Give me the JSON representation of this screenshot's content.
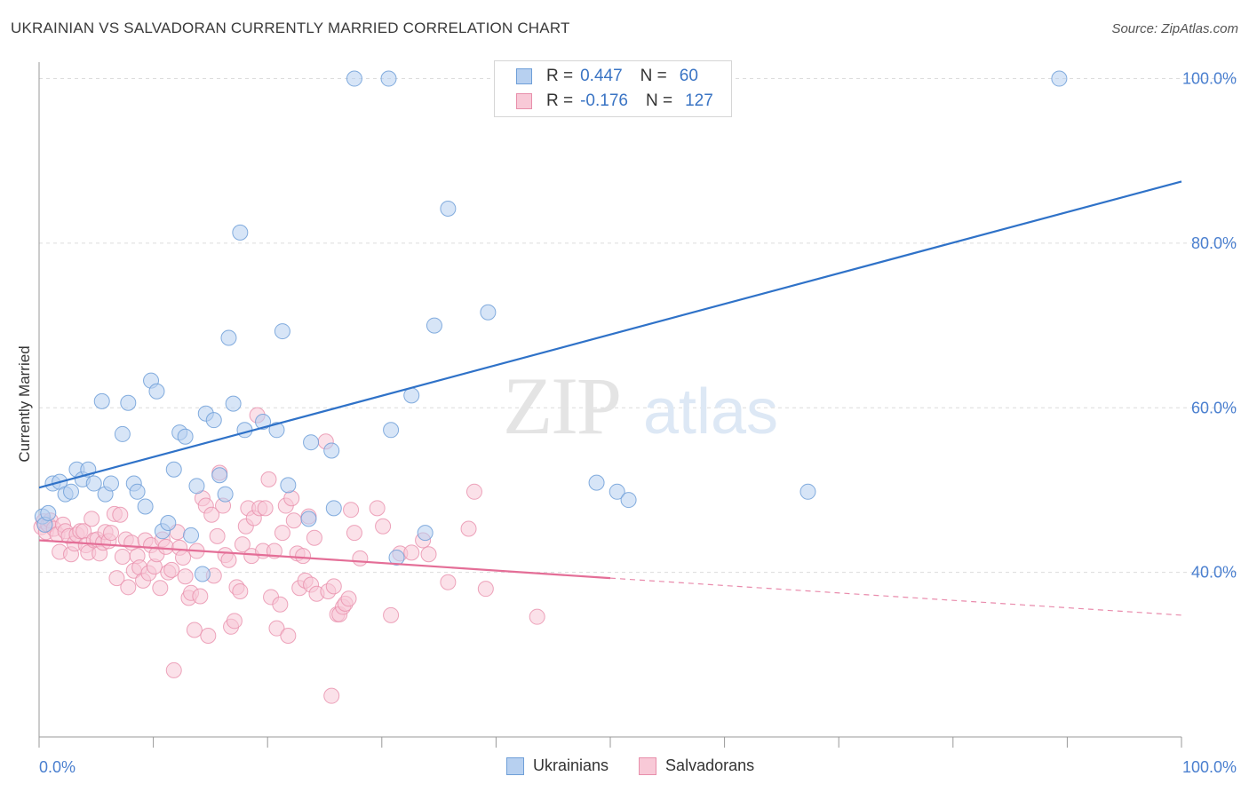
{
  "title": "UKRAINIAN VS SALVADORAN CURRENTLY MARRIED CORRELATION CHART",
  "source": "Source: ZipAtlas.com",
  "watermark": {
    "zip": "ZIP",
    "atlas": "atlas"
  },
  "legend": {
    "r_label": "R =",
    "n_label": "N =",
    "rows": [
      {
        "r": "0.447",
        "n": "60",
        "color": "#a9c7ee",
        "border": "#6f9fd8"
      },
      {
        "r": "-0.176",
        "n": "127",
        "color": "#f6bfd0",
        "border": "#e88fab"
      }
    ]
  },
  "bottom_legend": [
    {
      "label": "Ukrainians",
      "color": "#b7d0f0",
      "border": "#6f9fd8"
    },
    {
      "label": "Salvadorans",
      "color": "#f8c9d7",
      "border": "#e88fab"
    }
  ],
  "chart_data": {
    "type": "scatter",
    "title": "UKRAINIAN VS SALVADORAN CURRENTLY MARRIED CORRELATION CHART",
    "xlabel": "",
    "ylabel": "Currently Married",
    "xlim": [
      0,
      100
    ],
    "ylim": [
      20,
      102
    ],
    "x_tick_labels": [
      "0.0%",
      "100.0%"
    ],
    "y_tick_labels": [
      "40.0%",
      "60.0%",
      "80.0%",
      "100.0%"
    ],
    "y_ticks": [
      40,
      60,
      80,
      100
    ],
    "grid": true,
    "series": [
      {
        "name": "Ukrainians",
        "color": "#6f9fd8",
        "fill": "#b7d0f0",
        "trend": {
          "x": [
            0,
            100
          ],
          "y": [
            50.3,
            87.5
          ],
          "color": "#2f72c8"
        },
        "points": [
          [
            0.3,
            46.8
          ],
          [
            0.5,
            45.8
          ],
          [
            0.8,
            47.2
          ],
          [
            1.2,
            50.8
          ],
          [
            1.8,
            51.0
          ],
          [
            2.3,
            49.5
          ],
          [
            2.8,
            49.8
          ],
          [
            3.3,
            52.5
          ],
          [
            3.8,
            51.3
          ],
          [
            4.3,
            52.5
          ],
          [
            4.8,
            50.8
          ],
          [
            5.5,
            60.8
          ],
          [
            5.8,
            49.5
          ],
          [
            6.3,
            50.8
          ],
          [
            7.3,
            56.8
          ],
          [
            7.8,
            60.6
          ],
          [
            8.3,
            50.8
          ],
          [
            8.6,
            49.8
          ],
          [
            9.3,
            48.0
          ],
          [
            9.8,
            63.3
          ],
          [
            10.3,
            62.0
          ],
          [
            10.8,
            45.0
          ],
          [
            11.3,
            46.0
          ],
          [
            11.8,
            52.5
          ],
          [
            12.3,
            57.0
          ],
          [
            12.8,
            56.5
          ],
          [
            13.3,
            44.5
          ],
          [
            13.8,
            50.5
          ],
          [
            14.3,
            39.8
          ],
          [
            14.6,
            59.3
          ],
          [
            15.3,
            58.5
          ],
          [
            15.8,
            51.8
          ],
          [
            16.3,
            49.5
          ],
          [
            16.6,
            68.5
          ],
          [
            17.0,
            60.5
          ],
          [
            17.6,
            81.3
          ],
          [
            18.0,
            57.3
          ],
          [
            19.6,
            58.3
          ],
          [
            20.8,
            57.3
          ],
          [
            21.3,
            69.3
          ],
          [
            21.8,
            50.6
          ],
          [
            23.6,
            46.5
          ],
          [
            23.8,
            55.8
          ],
          [
            25.6,
            54.8
          ],
          [
            25.8,
            47.8
          ],
          [
            27.6,
            100.0
          ],
          [
            30.6,
            100.0
          ],
          [
            30.8,
            57.3
          ],
          [
            31.3,
            41.8
          ],
          [
            32.6,
            61.5
          ],
          [
            33.8,
            44.8
          ],
          [
            34.6,
            70.0
          ],
          [
            35.8,
            84.2
          ],
          [
            39.3,
            71.6
          ],
          [
            48.8,
            50.9
          ],
          [
            50.6,
            49.8
          ],
          [
            51.6,
            48.8
          ],
          [
            67.3,
            49.8
          ],
          [
            89.3,
            100.0
          ]
        ]
      },
      {
        "name": "Salvadorans",
        "color": "#e88fab",
        "fill": "#f8c9d7",
        "trend": {
          "x": [
            0,
            50
          ],
          "y": [
            43.9,
            39.3
          ],
          "dashed_to": [
            100,
            34.8
          ],
          "color": "#e46e97"
        },
        "points": [
          [
            0.2,
            45.5
          ],
          [
            0.4,
            46.2
          ],
          [
            0.6,
            44.9
          ],
          [
            0.8,
            45.8
          ],
          [
            1.0,
            46.3
          ],
          [
            1.3,
            45.3
          ],
          [
            1.6,
            44.6
          ],
          [
            1.8,
            42.5
          ],
          [
            2.1,
            45.8
          ],
          [
            2.3,
            45.0
          ],
          [
            2.6,
            44.4
          ],
          [
            2.8,
            42.2
          ],
          [
            3.1,
            43.5
          ],
          [
            3.3,
            44.6
          ],
          [
            3.6,
            45.0
          ],
          [
            3.9,
            45.0
          ],
          [
            4.1,
            43.3
          ],
          [
            4.3,
            42.4
          ],
          [
            4.6,
            46.5
          ],
          [
            4.8,
            43.9
          ],
          [
            5.1,
            44.0
          ],
          [
            5.3,
            42.3
          ],
          [
            5.6,
            43.6
          ],
          [
            5.8,
            44.9
          ],
          [
            6.1,
            43.8
          ],
          [
            6.3,
            44.8
          ],
          [
            6.6,
            47.1
          ],
          [
            6.8,
            39.3
          ],
          [
            7.1,
            47.0
          ],
          [
            7.3,
            41.9
          ],
          [
            7.6,
            44.0
          ],
          [
            7.8,
            38.2
          ],
          [
            8.1,
            43.6
          ],
          [
            8.3,
            40.2
          ],
          [
            8.6,
            42.0
          ],
          [
            8.8,
            40.6
          ],
          [
            9.1,
            39.0
          ],
          [
            9.3,
            43.9
          ],
          [
            9.6,
            39.9
          ],
          [
            9.8,
            43.3
          ],
          [
            10.1,
            40.7
          ],
          [
            10.3,
            42.2
          ],
          [
            10.6,
            38.1
          ],
          [
            10.8,
            44.0
          ],
          [
            11.1,
            43.1
          ],
          [
            11.3,
            40.0
          ],
          [
            11.6,
            40.3
          ],
          [
            11.8,
            28.1
          ],
          [
            12.1,
            44.9
          ],
          [
            12.3,
            43.0
          ],
          [
            12.6,
            41.8
          ],
          [
            12.8,
            39.5
          ],
          [
            13.1,
            36.9
          ],
          [
            13.3,
            37.5
          ],
          [
            13.6,
            33.0
          ],
          [
            13.8,
            42.6
          ],
          [
            14.1,
            37.1
          ],
          [
            14.3,
            49.0
          ],
          [
            14.6,
            48.1
          ],
          [
            14.8,
            32.3
          ],
          [
            15.1,
            47.0
          ],
          [
            15.3,
            39.6
          ],
          [
            15.6,
            44.4
          ],
          [
            15.8,
            52.1
          ],
          [
            16.1,
            48.1
          ],
          [
            16.3,
            42.1
          ],
          [
            16.6,
            41.5
          ],
          [
            16.8,
            33.4
          ],
          [
            17.1,
            34.1
          ],
          [
            17.3,
            38.2
          ],
          [
            17.6,
            37.7
          ],
          [
            17.8,
            43.4
          ],
          [
            18.1,
            45.6
          ],
          [
            18.3,
            47.8
          ],
          [
            18.6,
            42.0
          ],
          [
            18.8,
            46.6
          ],
          [
            19.1,
            59.1
          ],
          [
            19.3,
            47.8
          ],
          [
            19.6,
            42.6
          ],
          [
            19.8,
            47.8
          ],
          [
            20.1,
            51.3
          ],
          [
            20.3,
            37.0
          ],
          [
            20.6,
            42.6
          ],
          [
            20.8,
            33.2
          ],
          [
            21.1,
            36.1
          ],
          [
            21.3,
            44.8
          ],
          [
            21.6,
            48.1
          ],
          [
            21.8,
            32.3
          ],
          [
            22.1,
            49.0
          ],
          [
            22.3,
            46.3
          ],
          [
            22.6,
            42.3
          ],
          [
            22.8,
            38.1
          ],
          [
            23.1,
            42.0
          ],
          [
            23.3,
            39.0
          ],
          [
            23.6,
            46.8
          ],
          [
            23.8,
            38.5
          ],
          [
            24.1,
            44.2
          ],
          [
            24.3,
            37.4
          ],
          [
            25.1,
            55.9
          ],
          [
            25.3,
            37.7
          ],
          [
            25.6,
            25.0
          ],
          [
            25.8,
            38.3
          ],
          [
            26.1,
            34.9
          ],
          [
            26.3,
            34.9
          ],
          [
            26.6,
            35.8
          ],
          [
            26.8,
            36.2
          ],
          [
            27.1,
            36.8
          ],
          [
            27.3,
            47.6
          ],
          [
            27.6,
            44.8
          ],
          [
            28.1,
            41.7
          ],
          [
            29.6,
            47.8
          ],
          [
            30.1,
            45.6
          ],
          [
            30.8,
            34.8
          ],
          [
            31.6,
            42.3
          ],
          [
            32.6,
            42.4
          ],
          [
            33.6,
            43.9
          ],
          [
            34.1,
            42.2
          ],
          [
            35.8,
            38.8
          ],
          [
            37.6,
            45.3
          ],
          [
            38.1,
            49.8
          ],
          [
            39.1,
            38.0
          ],
          [
            43.6,
            34.6
          ]
        ]
      }
    ]
  }
}
